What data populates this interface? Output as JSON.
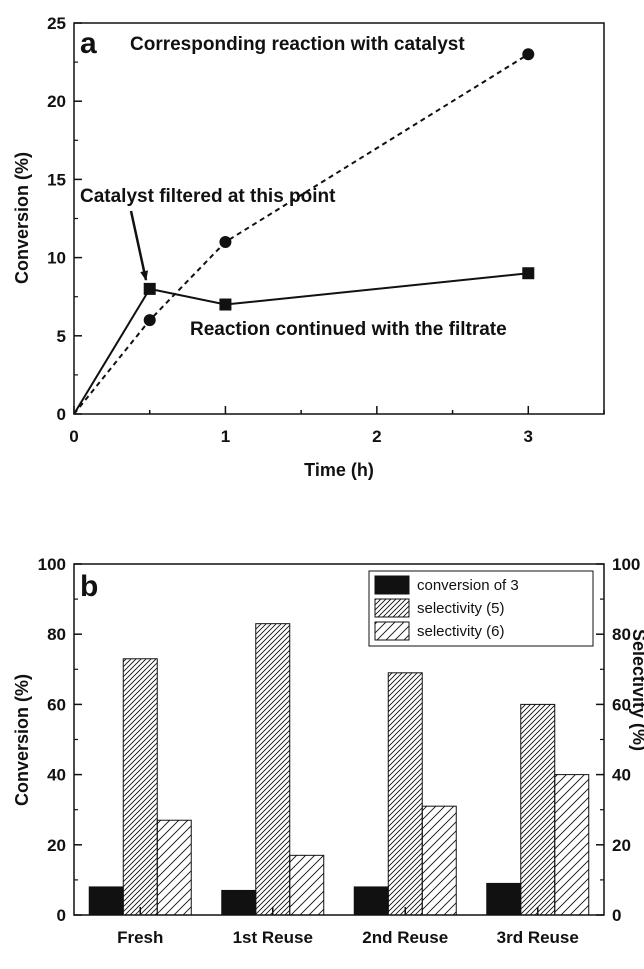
{
  "chart_data": [
    {
      "type": "line",
      "panel_label": "a",
      "xlabel": "Time (h)",
      "ylabel": "Conversion (%)",
      "xlim": [
        0,
        3.5
      ],
      "ylim": [
        0,
        25
      ],
      "xticks": [
        0,
        1,
        2,
        3
      ],
      "yticks": [
        0,
        5,
        10,
        15,
        20,
        25
      ],
      "series": [
        {
          "name": "Corresponding reaction with catalyst",
          "marker": "circle",
          "style": "dashed",
          "x": [
            0,
            0.5,
            1,
            3
          ],
          "y": [
            0,
            6,
            11,
            23
          ]
        },
        {
          "name": "Reaction continued with the filtrate",
          "marker": "square",
          "style": "solid",
          "x": [
            0,
            0.5,
            1,
            3
          ],
          "y": [
            0,
            8,
            7,
            9
          ]
        }
      ],
      "annotations": [
        {
          "text": "Corresponding reaction with catalyst"
        },
        {
          "text": "Catalyst filtered at this point",
          "arrow_to": {
            "x": 0.5,
            "y": 8
          }
        },
        {
          "text": "Reaction continued with the filtrate"
        }
      ]
    },
    {
      "type": "bar",
      "panel_label": "b",
      "ylabel": "Conversion (%)",
      "y2label": "Selectivity (%)",
      "ylim": [
        0,
        100
      ],
      "yticks": [
        0,
        20,
        40,
        60,
        80,
        100
      ],
      "categories": [
        "Fresh",
        "1st Reuse",
        "2nd Reuse",
        "3rd Reuse"
      ],
      "series": [
        {
          "name": "conversion of 3",
          "fill": "solid",
          "values": [
            8,
            7,
            8,
            9
          ]
        },
        {
          "name": "selectivity (5)",
          "fill": "dense-hatch",
          "values": [
            73,
            83,
            69,
            60
          ]
        },
        {
          "name": "selectivity (6)",
          "fill": "sparse-hatch",
          "values": [
            27,
            17,
            31,
            40
          ]
        }
      ],
      "legend": "top-right"
    }
  ]
}
